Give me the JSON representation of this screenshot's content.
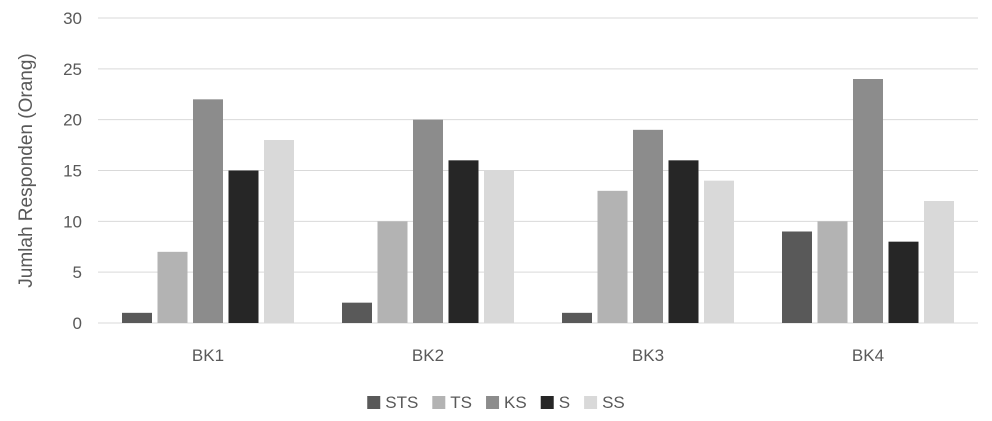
{
  "chart_data": {
    "type": "bar",
    "title": "",
    "xlabel": "",
    "ylabel": "Jumlah Responden (Orang)",
    "ylim": [
      0,
      30
    ],
    "yticks": [
      0,
      5,
      10,
      15,
      20,
      25,
      30
    ],
    "grid": true,
    "legend_position": "bottom",
    "categories": [
      "BK1",
      "BK2",
      "BK3",
      "BK4"
    ],
    "series": [
      {
        "name": "STS",
        "color": "#595959",
        "values": [
          1,
          2,
          1,
          9
        ]
      },
      {
        "name": "TS",
        "color": "#b3b3b3",
        "values": [
          7,
          10,
          13,
          10
        ]
      },
      {
        "name": "KS",
        "color": "#8c8c8c",
        "values": [
          22,
          20,
          19,
          24
        ]
      },
      {
        "name": "S",
        "color": "#262626",
        "values": [
          15,
          16,
          16,
          8
        ]
      },
      {
        "name": "SS",
        "color": "#d9d9d9",
        "values": [
          18,
          15,
          14,
          12
        ]
      }
    ]
  }
}
